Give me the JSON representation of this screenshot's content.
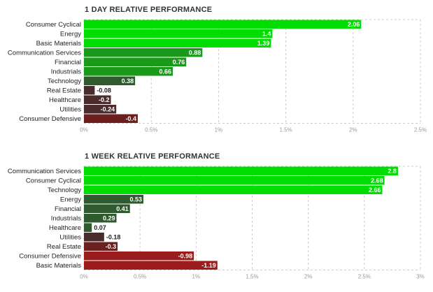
{
  "colors": {
    "pos_strong": "#00dd00",
    "pos_mid": "#1a9a1a",
    "pos_weak": "#2e5a2e",
    "neg_weak": "#4a2c2c",
    "neg_mid": "#6b1f1f",
    "neg_strong": "#9b1c1c",
    "grid": "#cccccc"
  },
  "chart_data": [
    {
      "type": "bar",
      "orientation": "horizontal",
      "title": "1 DAY RELATIVE PERFORMANCE",
      "categories": [
        "Consumer Cyclical",
        "Energy",
        "Basic Materials",
        "Communication Services",
        "Financial",
        "Industrials",
        "Technology",
        "Real Estate",
        "Healthcare",
        "Utilities",
        "Consumer Defensive"
      ],
      "values": [
        2.06,
        1.4,
        1.39,
        0.88,
        0.76,
        0.66,
        0.38,
        -0.08,
        -0.2,
        -0.24,
        -0.4
      ],
      "value_labels": [
        "2.06",
        "1.4",
        "1.39",
        "0.88",
        "0.76",
        "0.66",
        "0.38",
        "-0.08",
        "-0.2",
        "-0.24",
        "-0.4"
      ],
      "xlim": [
        0,
        2.5
      ],
      "xticks": [
        "0%",
        "0.5%",
        "1%",
        "1.5%",
        "2%",
        "2.5%"
      ],
      "grid": true
    },
    {
      "type": "bar",
      "orientation": "horizontal",
      "title": "1 WEEK RELATIVE PERFORMANCE",
      "categories": [
        "Communication Services",
        "Consumer Cyclical",
        "Technology",
        "Energy",
        "Financial",
        "Industrials",
        "Healthcare",
        "Utilities",
        "Real Estate",
        "Consumer Defensive",
        "Basic Materials"
      ],
      "values": [
        2.8,
        2.68,
        2.66,
        0.53,
        0.41,
        0.29,
        0.07,
        -0.18,
        -0.3,
        -0.98,
        -1.19
      ],
      "value_labels": [
        "2.8",
        "2.68",
        "2.66",
        "0.53",
        "0.41",
        "0.29",
        "0.07",
        "-0.18",
        "-0.3",
        "-0.98",
        "-1.19"
      ],
      "xlim": [
        0,
        3
      ],
      "xticks": [
        "0%",
        "0.5%",
        "1%",
        "1.5%",
        "2%",
        "2.5%",
        "3%"
      ],
      "grid": true
    }
  ]
}
